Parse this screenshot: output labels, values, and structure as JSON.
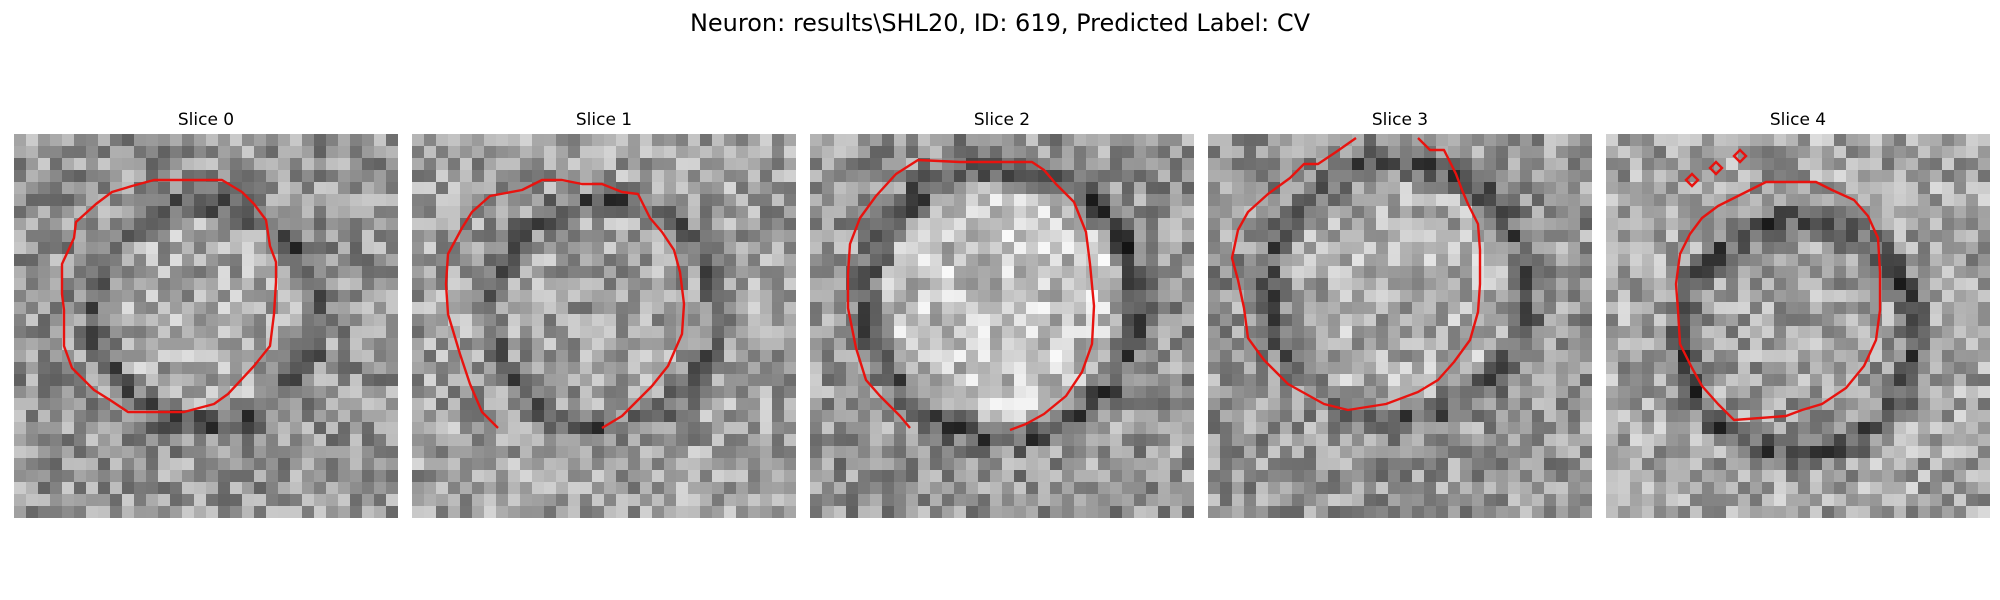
{
  "figure": {
    "title": "Neuron: results\\SHL20, ID: 619, Predicted Label: CV"
  },
  "panels": [
    {
      "title": "Slice 0"
    },
    {
      "title": "Slice 1"
    },
    {
      "title": "Slice 2"
    },
    {
      "title": "Slice 3"
    },
    {
      "title": "Slice 4"
    }
  ],
  "colors": {
    "contour": "#ff0000",
    "background": "#ffffff"
  }
}
